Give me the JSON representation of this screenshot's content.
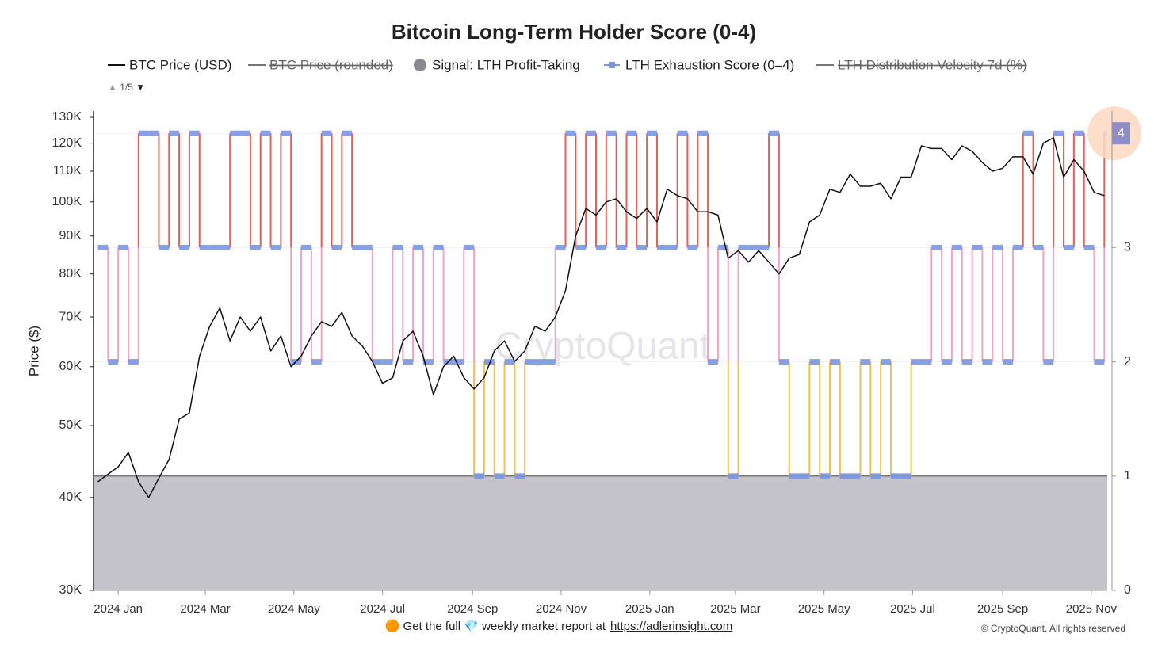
{
  "chart_data": {
    "type": "line",
    "title": "Bitcoin Long-Term Holder Score (0-4)",
    "y_label": "Price ($)",
    "log_y": true,
    "grid": true,
    "watermark": "CryptoQuant",
    "legend_page": "1/5",
    "footer": {
      "lead": "🟠 Get the full 💎 weekly market report at",
      "link": "https://adlerinsight.com",
      "copyright": "© CryptoQuant. All rights reserved"
    },
    "x": [
      "2023-12-18",
      "2023-12-25",
      "2024-01-01",
      "2024-01-08",
      "2024-01-15",
      "2024-01-22",
      "2024-01-29",
      "2024-02-05",
      "2024-02-12",
      "2024-02-19",
      "2024-02-26",
      "2024-03-04",
      "2024-03-11",
      "2024-03-18",
      "2024-03-25",
      "2024-04-01",
      "2024-04-08",
      "2024-04-15",
      "2024-04-22",
      "2024-04-29",
      "2024-05-06",
      "2024-05-13",
      "2024-05-20",
      "2024-05-27",
      "2024-06-03",
      "2024-06-10",
      "2024-06-17",
      "2024-06-24",
      "2024-07-01",
      "2024-07-08",
      "2024-07-15",
      "2024-07-22",
      "2024-07-29",
      "2024-08-05",
      "2024-08-12",
      "2024-08-19",
      "2024-08-26",
      "2024-09-02",
      "2024-09-09",
      "2024-09-16",
      "2024-09-23",
      "2024-09-30",
      "2024-10-07",
      "2024-10-14",
      "2024-10-21",
      "2024-10-28",
      "2024-11-04",
      "2024-11-11",
      "2024-11-18",
      "2024-11-25",
      "2024-12-02",
      "2024-12-09",
      "2024-12-16",
      "2024-12-23",
      "2024-12-30",
      "2025-01-06",
      "2025-01-13",
      "2025-01-20",
      "2025-01-27",
      "2025-02-03",
      "2025-02-10",
      "2025-02-17",
      "2025-02-24",
      "2025-03-03",
      "2025-03-10",
      "2025-03-17",
      "2025-03-24",
      "2025-03-31",
      "2025-04-07",
      "2025-04-14",
      "2025-04-21",
      "2025-04-28",
      "2025-05-05",
      "2025-05-12",
      "2025-05-19",
      "2025-05-26",
      "2025-06-02",
      "2025-06-09",
      "2025-06-16",
      "2025-06-23",
      "2025-06-30",
      "2025-07-07",
      "2025-07-14",
      "2025-07-21",
      "2025-07-28",
      "2025-08-04",
      "2025-08-11",
      "2025-08-18",
      "2025-08-25",
      "2025-09-01",
      "2025-09-08",
      "2025-09-15",
      "2025-09-22",
      "2025-09-29",
      "2025-10-06",
      "2025-10-13",
      "2025-10-20",
      "2025-10-27",
      "2025-11-03",
      "2025-11-10"
    ],
    "series": [
      {
        "name": "BTC Price (USD)",
        "color": "#111111",
        "values": [
          42000,
          43000,
          44000,
          46000,
          42000,
          40000,
          42500,
          45000,
          51000,
          52000,
          62000,
          68000,
          72000,
          65000,
          70000,
          67000,
          70000,
          63000,
          66000,
          60000,
          62000,
          66000,
          69000,
          68000,
          71000,
          66000,
          64000,
          61000,
          57000,
          58000,
          65000,
          67000,
          62000,
          55000,
          60000,
          62000,
          58000,
          56000,
          58000,
          63000,
          65000,
          61000,
          63000,
          68000,
          67000,
          70000,
          76000,
          90000,
          98000,
          96000,
          100000,
          101000,
          97000,
          95000,
          98000,
          94000,
          104000,
          102000,
          101000,
          97000,
          97000,
          96000,
          84000,
          86000,
          83000,
          86000,
          83000,
          80000,
          84000,
          85000,
          94000,
          96000,
          104000,
          103000,
          109000,
          105000,
          105000,
          106000,
          101000,
          108000,
          108000,
          119000,
          118000,
          118000,
          114000,
          119000,
          117000,
          113000,
          110000,
          111000,
          115000,
          115000,
          109000,
          120000,
          122000,
          108000,
          114000,
          110000,
          103000,
          102000
        ]
      },
      {
        "name": "LTH Exhaustion Score (0–4)",
        "color": "#7b96e0",
        "axis": "y2",
        "values": [
          3,
          2,
          3,
          2,
          4,
          4,
          3,
          4,
          3,
          4,
          3,
          3,
          3,
          4,
          4,
          3,
          4,
          3,
          4,
          2,
          3,
          2,
          4,
          3,
          4,
          3,
          3,
          2,
          2,
          3,
          2,
          3,
          2,
          3,
          2,
          2,
          3,
          1,
          2,
          1,
          2,
          1,
          2,
          2,
          2,
          3,
          4,
          3,
          4,
          3,
          4,
          3,
          4,
          3,
          4,
          3,
          3,
          4,
          3,
          4,
          2,
          3,
          1,
          3,
          3,
          3,
          4,
          2,
          1,
          1,
          2,
          1,
          2,
          1,
          1,
          2,
          1,
          2,
          1,
          1,
          2,
          2,
          3,
          2,
          3,
          2,
          3,
          2,
          3,
          2,
          3,
          4,
          3,
          2,
          4,
          3,
          4,
          3,
          2,
          4
        ]
      }
    ],
    "legend_extra": [
      {
        "name": "BTC Price (rounded)",
        "hidden": true,
        "color": "#777777"
      },
      {
        "name": "Signal: LTH Profit-Taking",
        "color": "#8a8790"
      },
      {
        "name": "LTH Distribution Velocity 7d (%)",
        "hidden": true,
        "color": "#777777"
      }
    ],
    "step_colors": {
      "2": "#eec44a",
      "3": "#f2a3c4",
      "4": "#e0605a"
    },
    "area_color": "#c4c3cb",
    "xlim": [
      "2023-12-15",
      "2025-11-12"
    ],
    "xticks": [
      {
        "value": "2024-01-01",
        "label": "2024 Jan"
      },
      {
        "value": "2024-03-01",
        "label": "2024 Mar"
      },
      {
        "value": "2024-05-01",
        "label": "2024 May"
      },
      {
        "value": "2024-07-01",
        "label": "2024 Jul"
      },
      {
        "value": "2024-09-01",
        "label": "2024 Sep"
      },
      {
        "value": "2024-11-01",
        "label": "2024 Nov"
      },
      {
        "value": "2025-01-01",
        "label": "2025 Jan"
      },
      {
        "value": "2025-03-01",
        "label": "2025 Mar"
      },
      {
        "value": "2025-05-01",
        "label": "2025 May"
      },
      {
        "value": "2025-07-01",
        "label": "2025 Jul"
      },
      {
        "value": "2025-09-01",
        "label": "2025 Sep"
      },
      {
        "value": "2025-11-01",
        "label": "2025 Nov"
      }
    ],
    "ylim": [
      30000,
      130000
    ],
    "yticks": [
      {
        "value": 30000,
        "label": "30K"
      },
      {
        "value": 40000,
        "label": "40K"
      },
      {
        "value": 50000,
        "label": "50K"
      },
      {
        "value": 60000,
        "label": "60K"
      },
      {
        "value": 70000,
        "label": "70K"
      },
      {
        "value": 80000,
        "label": "80K"
      },
      {
        "value": 90000,
        "label": "90K"
      },
      {
        "value": 100000,
        "label": "100K"
      },
      {
        "value": 110000,
        "label": "110K"
      },
      {
        "value": 120000,
        "label": "120K"
      },
      {
        "value": 130000,
        "label": "130K"
      }
    ],
    "y2lim": [
      0,
      4.14
    ],
    "y2ticks": [
      0,
      1,
      2,
      3,
      4
    ]
  }
}
